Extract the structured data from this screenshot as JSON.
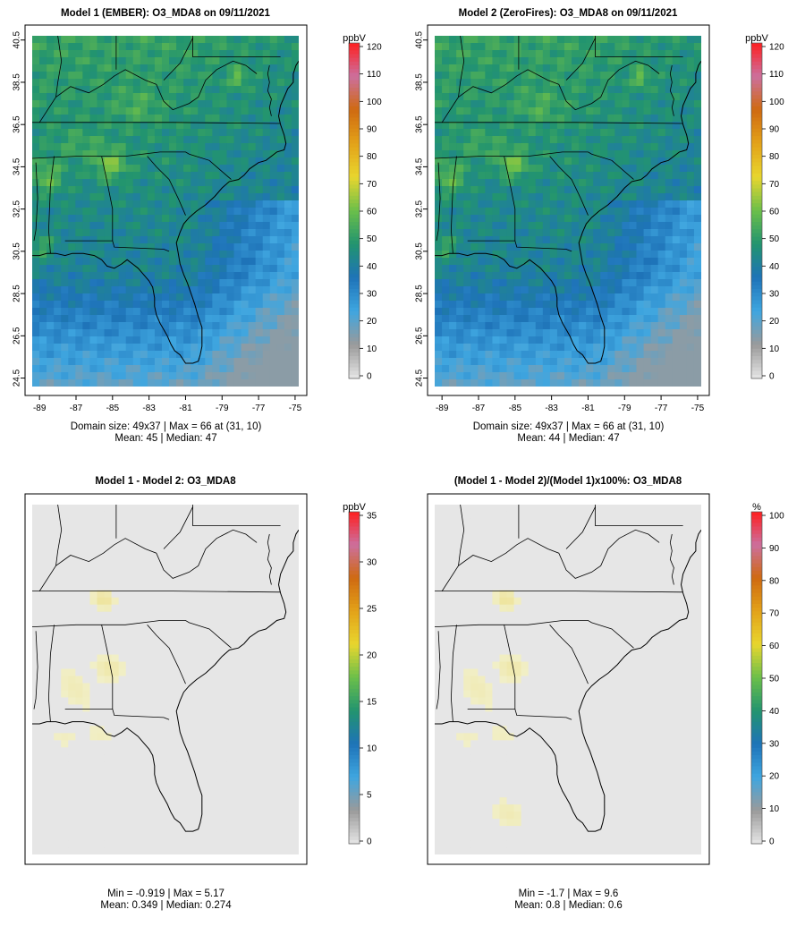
{
  "chart_data": [
    {
      "type": "heatmap",
      "title": "Model 1 (EMBER): O3_MDA8 on 09/11/2021",
      "grid_size": "49x37",
      "x_ticks": [
        "-89",
        "-87",
        "-85",
        "-83",
        "-81",
        "-79",
        "-77",
        "-75"
      ],
      "y_ticks": [
        "24.5",
        "26.5",
        "28.5",
        "30.5",
        "32.5",
        "34.5",
        "36.5",
        "38.5",
        "40.5"
      ],
      "xlim": [
        -89.4,
        -74.8
      ],
      "ylim": [
        24.1,
        40.7
      ],
      "colorbar": {
        "label": "ppbV",
        "min": 0,
        "max": 120,
        "ticks": [
          "0",
          "10",
          "20",
          "30",
          "40",
          "50",
          "60",
          "70",
          "80",
          "90",
          "100",
          "110",
          "120"
        ]
      },
      "stats": {
        "domain_line": "Domain size: 49x37 | Max = 66 at (31, 10)",
        "summary_line": "Mean: 45 |  Median: 47"
      },
      "value_stats": {
        "max": 66,
        "mean": 45,
        "median": 47
      }
    },
    {
      "type": "heatmap",
      "title": "Model 2 (ZeroFires): O3_MDA8 on 09/11/2021",
      "grid_size": "49x37",
      "x_ticks": [
        "-89",
        "-87",
        "-85",
        "-83",
        "-81",
        "-79",
        "-77",
        "-75"
      ],
      "y_ticks": [
        "24.5",
        "26.5",
        "28.5",
        "30.5",
        "32.5",
        "34.5",
        "36.5",
        "38.5",
        "40.5"
      ],
      "xlim": [
        -89.4,
        -74.8
      ],
      "ylim": [
        24.1,
        40.7
      ],
      "colorbar": {
        "label": "ppbV",
        "min": 0,
        "max": 120,
        "ticks": [
          "0",
          "10",
          "20",
          "30",
          "40",
          "50",
          "60",
          "70",
          "80",
          "90",
          "100",
          "110",
          "120"
        ]
      },
      "stats": {
        "domain_line": "Domain size: 49x37 | Max = 66 at (31, 10)",
        "summary_line": "Mean: 44 |  Median: 47"
      },
      "value_stats": {
        "max": 66,
        "mean": 44,
        "median": 47
      }
    },
    {
      "type": "heatmap",
      "title": "Model 1 - Model 2: O3_MDA8",
      "x_ticks": [],
      "y_ticks": [],
      "xlim": [
        -89.4,
        -74.8
      ],
      "ylim": [
        24.1,
        40.7
      ],
      "colorbar": {
        "label": "ppbV",
        "min": 0,
        "max": 35,
        "ticks": [
          "0",
          "5",
          "10",
          "15",
          "20",
          "25",
          "30",
          "35"
        ]
      },
      "stats": {
        "domain_line": "Min = -0.919 | Max = 5.17",
        "summary_line": "Mean: 0.349 |  Median: 0.274"
      },
      "value_stats": {
        "min": -0.919,
        "max": 5.17,
        "mean": 0.349,
        "median": 0.274
      }
    },
    {
      "type": "heatmap",
      "title": "(Model 1 - Model 2)/(Model 1)x100%: O3_MDA8",
      "x_ticks": [],
      "y_ticks": [],
      "xlim": [
        -89.4,
        -74.8
      ],
      "ylim": [
        24.1,
        40.7
      ],
      "colorbar": {
        "label": "%",
        "min": 0,
        "max": 100,
        "ticks": [
          "0",
          "10",
          "20",
          "30",
          "40",
          "50",
          "60",
          "70",
          "80",
          "90",
          "100"
        ]
      },
      "stats": {
        "domain_line": "Min = -1.7 | Max = 9.6",
        "summary_line": "Mean: 0.8 |  Median: 0.6"
      },
      "value_stats": {
        "min": -1.7,
        "max": 9.6,
        "mean": 0.8,
        "median": 0.6
      }
    }
  ],
  "colors": {
    "diff_background": "#e6e6e6",
    "diff_tint": "#f1efc7",
    "diff_tint_strong": "#eee39a",
    "map_lines": "#000000",
    "scale_stops": [
      "#e6e6e6",
      "#9a9a9a",
      "#3fa6e0",
      "#1e73b8",
      "#22946f",
      "#6bbf4a",
      "#e8d62e",
      "#e3a219",
      "#cf6a10",
      "#cc6f9e",
      "#ff1f1f"
    ]
  }
}
